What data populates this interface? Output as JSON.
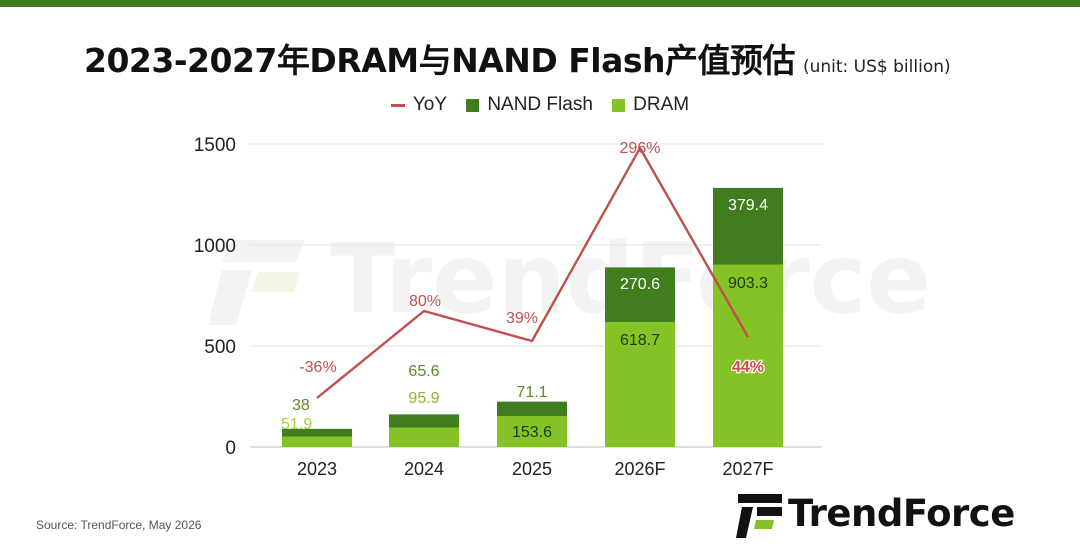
{
  "title": "2023-2027年DRAM与NAND Flash产值预估",
  "unit": "(unit: US$ billion)",
  "legend": [
    {
      "label": "YoY",
      "kind": "line",
      "color": "#c0504d"
    },
    {
      "label": "NAND Flash",
      "kind": "box",
      "color": "#3f7d1e"
    },
    {
      "label": "DRAM",
      "kind": "box",
      "color": "#84c225"
    }
  ],
  "source": "Source: TrendForce, May 2026",
  "brand": "TrendForce",
  "watermark": "TrendForce",
  "chart_data": {
    "type": "bar",
    "stacked": true,
    "categories": [
      "2023",
      "2024",
      "2025",
      "2026F",
      "2027F"
    ],
    "series": [
      {
        "name": "DRAM",
        "values": [
          51.9,
          95.9,
          153.6,
          618.7,
          903.3
        ],
        "labels": [
          "51.9",
          "95.9",
          "153.6",
          "618.7",
          "903.3"
        ],
        "color": "#84c225"
      },
      {
        "name": "NAND Flash",
        "values": [
          38,
          65.6,
          71.1,
          270.6,
          379.4
        ],
        "labels": [
          "38",
          "65.6",
          "71.1",
          "270.6",
          "379.4"
        ],
        "color": "#3f7d1e"
      }
    ],
    "line": {
      "name": "YoY",
      "values": [
        -36,
        80,
        39,
        296,
        44
      ],
      "labels": [
        "-36%",
        "80%",
        "39%",
        "296%",
        "44%"
      ],
      "color": "#c0504d"
    },
    "ylim": [
      0,
      1500
    ],
    "yticks": [
      0,
      500,
      1000,
      1500
    ],
    "ytick_labels": [
      "0",
      "500",
      "1000",
      "1500"
    ],
    "grid": true,
    "legend_position": "top"
  }
}
